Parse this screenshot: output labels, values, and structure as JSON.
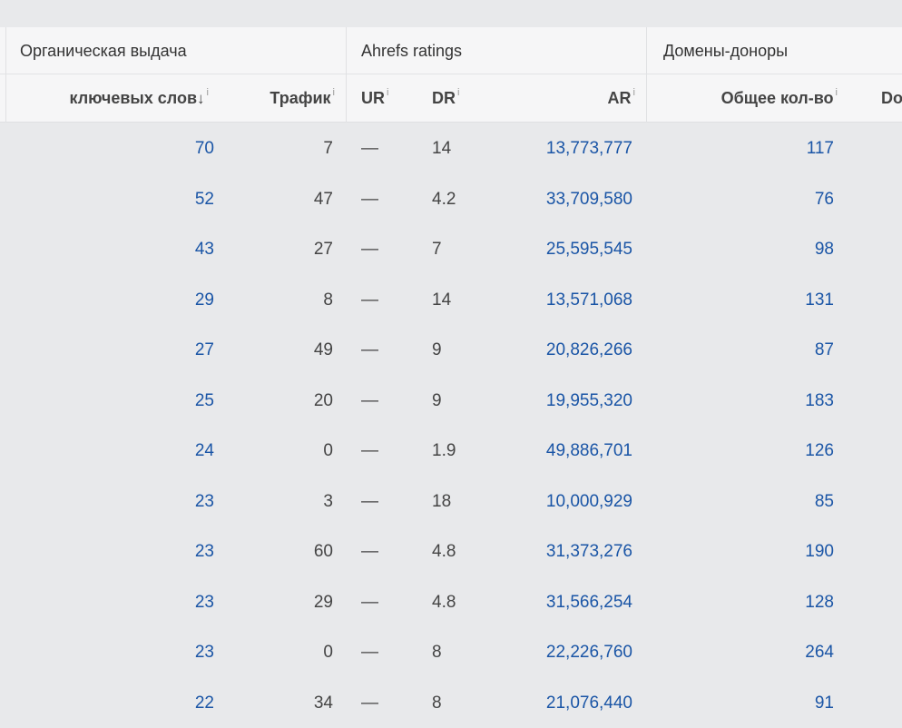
{
  "groups": {
    "organic": "Органическая выдача",
    "ratings": "Ahrefs ratings",
    "domains": "Домены-доноры"
  },
  "columns": {
    "keywords": "ключевых слов",
    "keywords_sort_icon": "↓",
    "traffic": "Трафик",
    "ur": "UR",
    "dr": "DR",
    "ar": "AR",
    "total": "Общее кол-во",
    "next": "Do",
    "info_icon": "i"
  },
  "colors": {
    "link": "#1a55a6",
    "header_bg": "#f6f6f7",
    "body_bg": "#e8e9eb"
  },
  "rows": [
    {
      "keywords": "70",
      "traffic": "7",
      "ur": "—",
      "dr": "14",
      "ar": "13,773,777",
      "total": "117"
    },
    {
      "keywords": "52",
      "traffic": "47",
      "ur": "—",
      "dr": "4.2",
      "ar": "33,709,580",
      "total": "76"
    },
    {
      "keywords": "43",
      "traffic": "27",
      "ur": "—",
      "dr": "7",
      "ar": "25,595,545",
      "total": "98"
    },
    {
      "keywords": "29",
      "traffic": "8",
      "ur": "—",
      "dr": "14",
      "ar": "13,571,068",
      "total": "131"
    },
    {
      "keywords": "27",
      "traffic": "49",
      "ur": "—",
      "dr": "9",
      "ar": "20,826,266",
      "total": "87"
    },
    {
      "keywords": "25",
      "traffic": "20",
      "ur": "—",
      "dr": "9",
      "ar": "19,955,320",
      "total": "183"
    },
    {
      "keywords": "24",
      "traffic": "0",
      "ur": "—",
      "dr": "1.9",
      "ar": "49,886,701",
      "total": "126"
    },
    {
      "keywords": "23",
      "traffic": "3",
      "ur": "—",
      "dr": "18",
      "ar": "10,000,929",
      "total": "85"
    },
    {
      "keywords": "23",
      "traffic": "60",
      "ur": "—",
      "dr": "4.8",
      "ar": "31,373,276",
      "total": "190"
    },
    {
      "keywords": "23",
      "traffic": "29",
      "ur": "—",
      "dr": "4.8",
      "ar": "31,566,254",
      "total": "128"
    },
    {
      "keywords": "23",
      "traffic": "0",
      "ur": "—",
      "dr": "8",
      "ar": "22,226,760",
      "total": "264"
    },
    {
      "keywords": "22",
      "traffic": "34",
      "ur": "—",
      "dr": "8",
      "ar": "21,076,440",
      "total": "91"
    }
  ]
}
